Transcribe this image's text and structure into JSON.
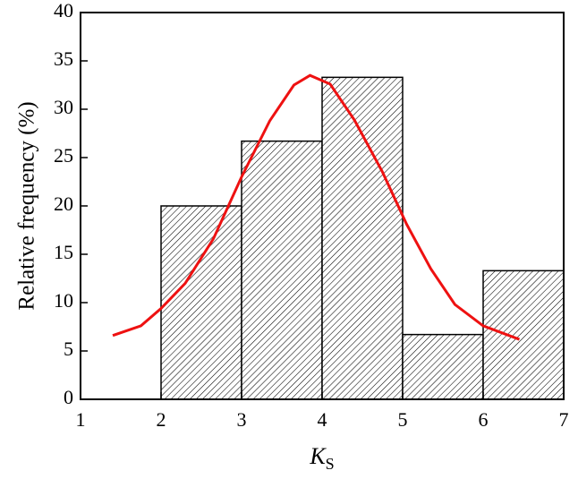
{
  "chart_data": {
    "type": "histogram",
    "bins": [
      2,
      3,
      4,
      5,
      6,
      7
    ],
    "values": [
      20,
      26.7,
      33.3,
      6.7,
      13.3
    ],
    "color": "#d9d9d9",
    "fit": {
      "color": "#ee1111",
      "x": [
        1.4,
        1.75,
        2.0,
        2.3,
        2.65,
        3.0,
        3.35,
        3.65,
        3.85,
        4.1,
        4.4,
        4.75,
        5.05,
        5.35,
        5.65,
        6.0,
        6.45
      ],
      "values": [
        6.6,
        7.6,
        9.4,
        12.0,
        16.6,
        23.0,
        28.8,
        32.5,
        33.5,
        32.6,
        28.9,
        23.5,
        18.1,
        13.5,
        9.8,
        7.6,
        6.2
      ]
    },
    "xlabel": "K",
    "xlabel_subscript": "S",
    "ylabel": "Relative frequency (%)",
    "xlim": [
      1,
      7
    ],
    "xticks": [
      1,
      2,
      3,
      4,
      5,
      6,
      7
    ],
    "ylim": [
      0,
      40
    ],
    "yticks": [
      0,
      5,
      10,
      15,
      20,
      25,
      30,
      35,
      40
    ]
  }
}
